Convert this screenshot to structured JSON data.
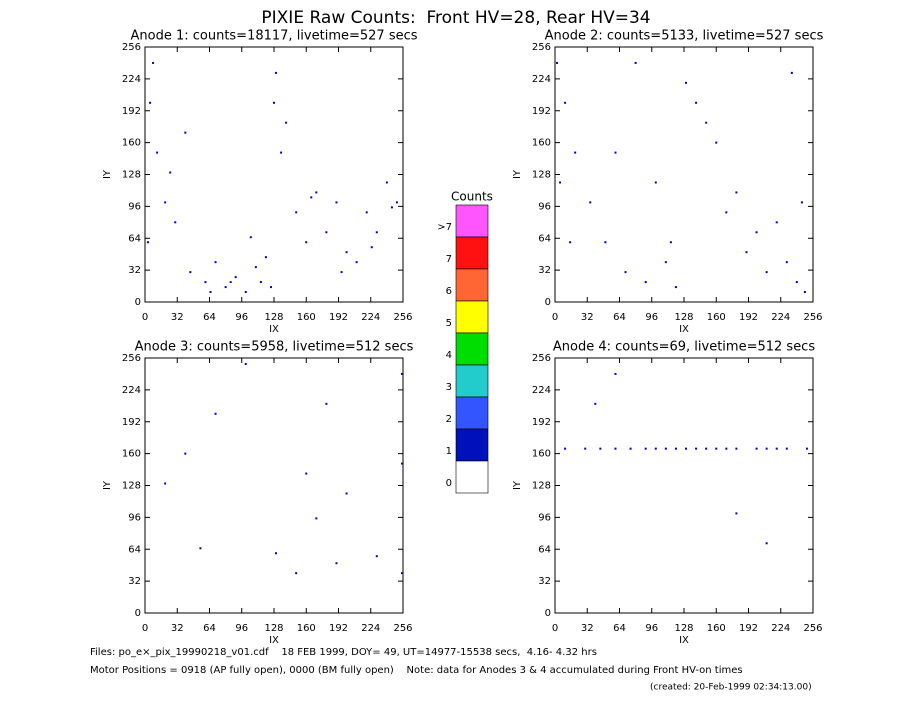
{
  "title": "PIXIE Raw Counts:  Front HV=28, Rear HV=34",
  "colorbar": {
    "title": "Counts",
    "labels": [
      ">7",
      "7",
      "6",
      "5",
      "4",
      "3",
      "2",
      "1",
      "0"
    ],
    "colors": [
      "#ff55ff",
      "#ff1111",
      "#ff6633",
      "#ffff00",
      "#00dd00",
      "#22cccc",
      "#3355ff",
      "#0011bb",
      "#ffffff"
    ]
  },
  "footer": {
    "files": "Files: po_e×_pix_19990218_v01.cdf    18 FEB 1999, DOY= 49, UT=14977-15538 secs,  4.16- 4.32 hrs",
    "motor": "Motor Positions = 0918 (AP fully open), 0000 (BM fully open)    Note: data for Anodes 3 & 4 accumulated during Front HV-on times",
    "created": "(created: 20-Feb-1999 02:34:13.00)"
  },
  "chart_data": [
    {
      "type": "scatter",
      "title": "Anode 1: counts=18117, livetime=527 secs",
      "xlabel": "IX",
      "ylabel": "IY",
      "color": "#0000cc",
      "xlim": [
        0,
        256
      ],
      "ylim": [
        0,
        256
      ],
      "xticks": [
        0,
        32,
        64,
        96,
        128,
        160,
        192,
        224,
        256
      ],
      "yticks": [
        0,
        32,
        64,
        96,
        128,
        160,
        192,
        224,
        256
      ],
      "x": [
        5,
        12,
        20,
        8,
        30,
        45,
        60,
        70,
        80,
        90,
        100,
        110,
        115,
        120,
        125,
        130,
        140,
        150,
        160,
        170,
        180,
        190,
        200,
        210,
        220,
        230,
        240,
        250,
        3,
        25,
        40,
        65,
        85,
        105,
        135,
        165,
        195,
        225,
        245,
        128
      ],
      "y": [
        200,
        150,
        100,
        240,
        80,
        30,
        20,
        40,
        15,
        25,
        10,
        35,
        20,
        45,
        15,
        230,
        180,
        90,
        60,
        110,
        70,
        100,
        50,
        40,
        90,
        70,
        120,
        100,
        60,
        130,
        170,
        10,
        20,
        65,
        150,
        105,
        30,
        55,
        95,
        200
      ]
    },
    {
      "type": "scatter",
      "title": "Anode 2: counts=5133, livetime=527 secs",
      "xlabel": "IX",
      "ylabel": "IY",
      "color": "#0000cc",
      "xlim": [
        0,
        256
      ],
      "ylim": [
        0,
        256
      ],
      "xticks": [
        0,
        32,
        64,
        96,
        128,
        160,
        192,
        224,
        256
      ],
      "yticks": [
        0,
        32,
        64,
        96,
        128,
        160,
        192,
        224,
        256
      ],
      "x": [
        2,
        10,
        20,
        35,
        50,
        70,
        90,
        110,
        115,
        120,
        130,
        150,
        170,
        190,
        200,
        210,
        220,
        230,
        240,
        245,
        248,
        60,
        80,
        100,
        140,
        160,
        180,
        235,
        15,
        5
      ],
      "y": [
        240,
        200,
        150,
        100,
        60,
        30,
        20,
        40,
        60,
        15,
        220,
        180,
        90,
        50,
        70,
        30,
        80,
        40,
        20,
        100,
        10,
        150,
        240,
        120,
        200,
        160,
        110,
        230,
        60,
        120
      ]
    },
    {
      "type": "scatter",
      "title": "Anode 3: counts=5958, livetime=512 secs",
      "xlabel": "IX",
      "ylabel": "IY",
      "color": "#0000cc",
      "xlim": [
        0,
        256
      ],
      "ylim": [
        0,
        256
      ],
      "xticks": [
        0,
        32,
        64,
        96,
        128,
        160,
        192,
        224,
        256
      ],
      "yticks": [
        0,
        32,
        64,
        96,
        128,
        160,
        192,
        224,
        256
      ],
      "x": [
        20,
        40,
        55,
        70,
        100,
        130,
        150,
        160,
        170,
        180,
        190,
        200,
        230,
        255,
        255,
        255
      ],
      "y": [
        130,
        160,
        65,
        200,
        250,
        60,
        40,
        140,
        95,
        210,
        50,
        120,
        57,
        40,
        150,
        240
      ]
    },
    {
      "type": "scatter",
      "title": "Anode 4: counts=69, livetime=512 secs",
      "xlabel": "IX",
      "ylabel": "IY",
      "color": "#0000cc",
      "xlim": [
        0,
        256
      ],
      "ylim": [
        0,
        256
      ],
      "xticks": [
        0,
        32,
        64,
        96,
        128,
        160,
        192,
        224,
        256
      ],
      "yticks": [
        0,
        32,
        64,
        96,
        128,
        160,
        192,
        224,
        256
      ],
      "x": [
        10,
        30,
        45,
        60,
        75,
        90,
        100,
        110,
        120,
        130,
        140,
        150,
        160,
        170,
        180,
        200,
        210,
        220,
        230,
        250,
        40,
        60,
        180,
        210
      ],
      "y": [
        165,
        165,
        165,
        165,
        165,
        165,
        165,
        165,
        165,
        165,
        165,
        165,
        165,
        165,
        165,
        165,
        165,
        165,
        165,
        165,
        210,
        240,
        100,
        70
      ]
    }
  ]
}
